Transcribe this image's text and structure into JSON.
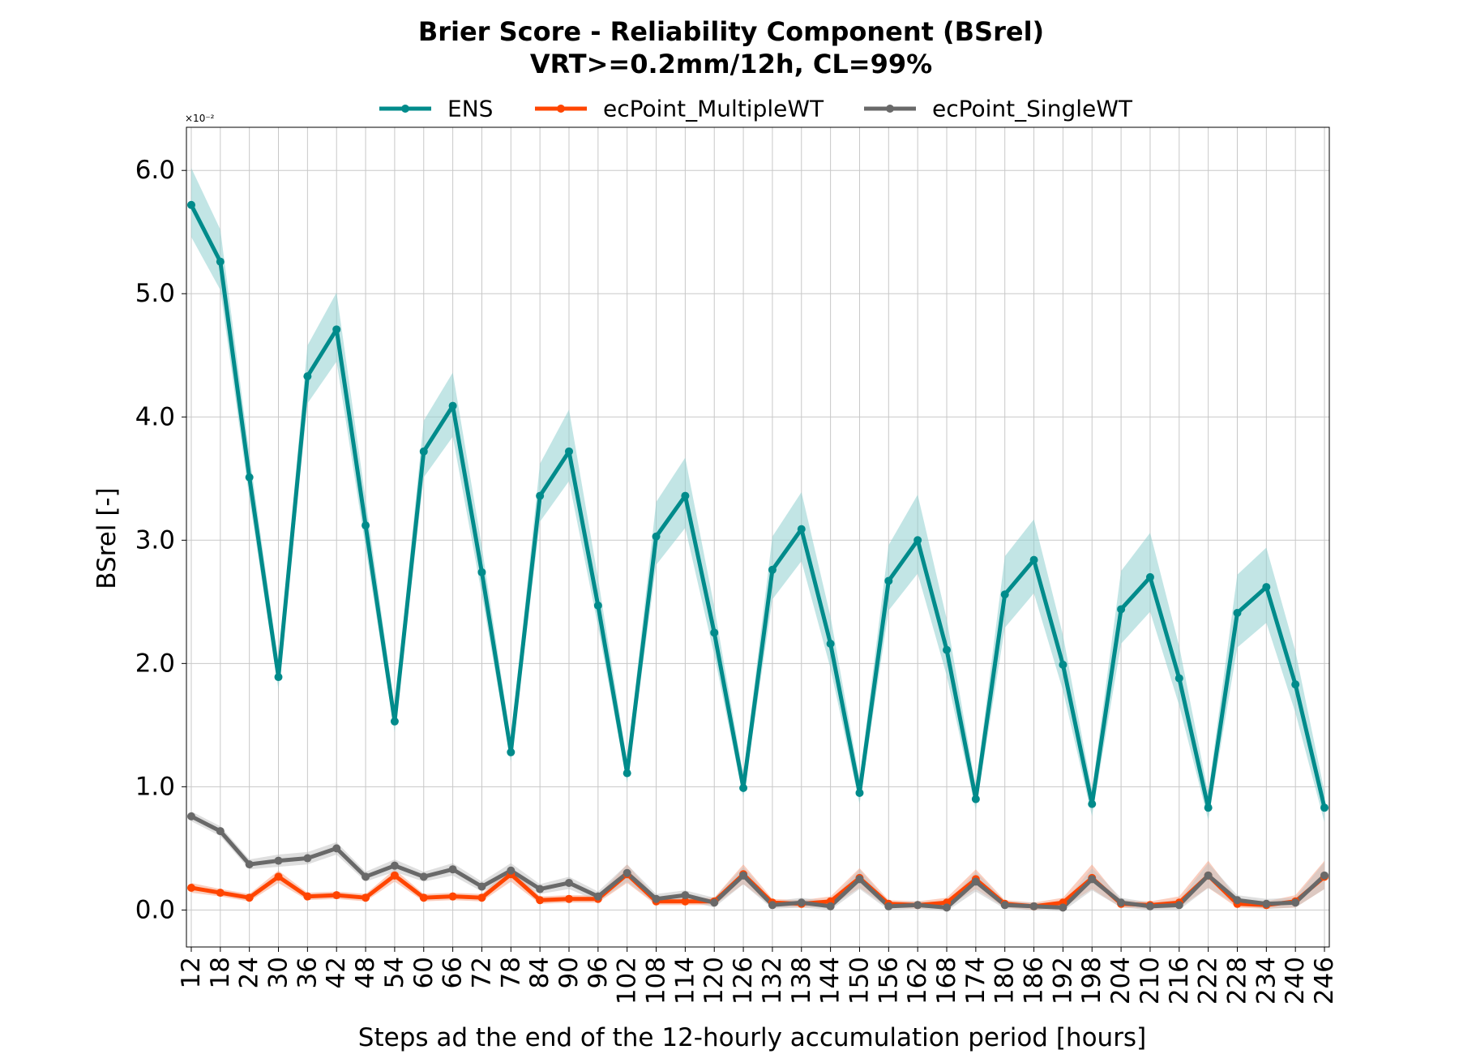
{
  "chart_data": {
    "type": "line",
    "title": "Brier Score - Reliability Component (BSrel)",
    "subtitle": "VRT>=0.2mm/12h, CL=99%",
    "xlabel": "Steps ad the end of the 12-hourly accumulation period [hours]",
    "ylabel": "BSrel [-]",
    "y_multiplier_label": "×10⁻²",
    "ylim": [
      -0.3,
      6.35
    ],
    "yticks": [
      "0.0",
      "1.0",
      "2.0",
      "3.0",
      "4.0",
      "5.0",
      "6.0"
    ],
    "grid": true,
    "legend": "top-center",
    "x": [
      12,
      18,
      24,
      30,
      36,
      42,
      48,
      54,
      60,
      66,
      72,
      78,
      84,
      90,
      96,
      102,
      108,
      114,
      120,
      126,
      132,
      138,
      144,
      150,
      156,
      162,
      168,
      174,
      180,
      186,
      192,
      198,
      204,
      210,
      216,
      222,
      228,
      234,
      240,
      246
    ],
    "series": [
      {
        "name": "ENS",
        "color": "#008b8b",
        "band_color": "#8fcfcf",
        "values": [
          5.72,
          5.26,
          3.51,
          1.89,
          4.33,
          4.71,
          3.12,
          1.53,
          3.72,
          4.09,
          2.74,
          1.28,
          3.36,
          3.72,
          2.47,
          1.11,
          3.03,
          3.36,
          2.25,
          0.99,
          2.76,
          3.09,
          2.16,
          0.95,
          2.67,
          3.0,
          2.11,
          0.9,
          2.56,
          2.84,
          1.99,
          0.86,
          2.44,
          2.7,
          1.88,
          0.83,
          2.41,
          2.62,
          1.83,
          0.83
        ],
        "lower": [
          5.46,
          5.03,
          3.34,
          1.79,
          4.11,
          4.45,
          2.94,
          1.44,
          3.51,
          3.84,
          2.56,
          1.2,
          3.15,
          3.48,
          2.3,
          1.03,
          2.8,
          3.1,
          2.07,
          0.91,
          2.52,
          2.83,
          1.96,
          0.86,
          2.43,
          2.73,
          1.9,
          0.81,
          2.29,
          2.57,
          1.78,
          0.76,
          2.16,
          2.42,
          1.66,
          0.73,
          2.13,
          2.33,
          1.6,
          0.71
        ],
        "upper": [
          6.02,
          5.52,
          3.7,
          2.01,
          4.58,
          5.01,
          3.33,
          1.64,
          3.97,
          4.36,
          2.95,
          1.38,
          3.62,
          4.06,
          2.69,
          1.21,
          3.31,
          3.67,
          2.46,
          1.09,
          3.03,
          3.39,
          2.38,
          1.06,
          2.96,
          3.37,
          2.36,
          1.0,
          2.87,
          3.17,
          2.23,
          0.97,
          2.75,
          3.06,
          2.14,
          0.95,
          2.72,
          2.94,
          2.1,
          0.96
        ]
      },
      {
        "name": "ecPoint_MultipleWT",
        "color": "#ff4500",
        "band_color": "#f5a58a",
        "values": [
          0.18,
          0.14,
          0.1,
          0.27,
          0.11,
          0.12,
          0.1,
          0.28,
          0.1,
          0.11,
          0.1,
          0.29,
          0.08,
          0.09,
          0.09,
          0.29,
          0.07,
          0.07,
          0.07,
          0.29,
          0.06,
          0.05,
          0.07,
          0.26,
          0.05,
          0.04,
          0.06,
          0.25,
          0.05,
          0.03,
          0.06,
          0.26,
          0.05,
          0.04,
          0.06,
          0.28,
          0.05,
          0.04,
          0.07,
          0.27
        ],
        "lower": [
          0.14,
          0.11,
          0.07,
          0.22,
          0.08,
          0.09,
          0.07,
          0.23,
          0.07,
          0.08,
          0.07,
          0.23,
          0.05,
          0.06,
          0.06,
          0.22,
          0.04,
          0.04,
          0.04,
          0.21,
          0.03,
          0.02,
          0.03,
          0.18,
          0.02,
          0.01,
          0.02,
          0.17,
          0.02,
          0.0,
          0.02,
          0.17,
          0.02,
          0.01,
          0.02,
          0.18,
          0.02,
          0.01,
          0.02,
          0.17
        ],
        "upper": [
          0.22,
          0.17,
          0.13,
          0.32,
          0.14,
          0.15,
          0.13,
          0.33,
          0.13,
          0.14,
          0.13,
          0.35,
          0.11,
          0.12,
          0.12,
          0.37,
          0.1,
          0.1,
          0.1,
          0.37,
          0.09,
          0.08,
          0.11,
          0.34,
          0.08,
          0.07,
          0.1,
          0.33,
          0.08,
          0.06,
          0.1,
          0.37,
          0.08,
          0.07,
          0.11,
          0.4,
          0.09,
          0.07,
          0.12,
          0.4
        ]
      },
      {
        "name": "ecPoint_SingleWT",
        "color": "#696969",
        "band_color": "#c4c4c4",
        "values": [
          0.76,
          0.64,
          0.37,
          0.4,
          0.42,
          0.5,
          0.27,
          0.36,
          0.27,
          0.33,
          0.19,
          0.32,
          0.17,
          0.22,
          0.11,
          0.3,
          0.09,
          0.12,
          0.06,
          0.28,
          0.04,
          0.06,
          0.03,
          0.25,
          0.03,
          0.04,
          0.02,
          0.23,
          0.04,
          0.03,
          0.02,
          0.25,
          0.06,
          0.03,
          0.04,
          0.28,
          0.08,
          0.05,
          0.06,
          0.28
        ],
        "lower": [
          0.72,
          0.6,
          0.33,
          0.35,
          0.37,
          0.45,
          0.23,
          0.31,
          0.23,
          0.28,
          0.15,
          0.26,
          0.13,
          0.17,
          0.07,
          0.23,
          0.05,
          0.08,
          0.02,
          0.21,
          0.01,
          0.02,
          0.0,
          0.17,
          0.0,
          0.01,
          -0.01,
          0.15,
          0.01,
          0.0,
          -0.01,
          0.16,
          0.02,
          0.0,
          0.0,
          0.18,
          0.04,
          0.01,
          0.02,
          0.17
        ],
        "upper": [
          0.8,
          0.68,
          0.41,
          0.45,
          0.47,
          0.55,
          0.31,
          0.41,
          0.31,
          0.38,
          0.23,
          0.38,
          0.21,
          0.27,
          0.15,
          0.37,
          0.13,
          0.16,
          0.1,
          0.35,
          0.07,
          0.1,
          0.07,
          0.33,
          0.06,
          0.07,
          0.05,
          0.31,
          0.07,
          0.06,
          0.05,
          0.34,
          0.1,
          0.06,
          0.08,
          0.38,
          0.12,
          0.09,
          0.1,
          0.39
        ]
      }
    ]
  }
}
